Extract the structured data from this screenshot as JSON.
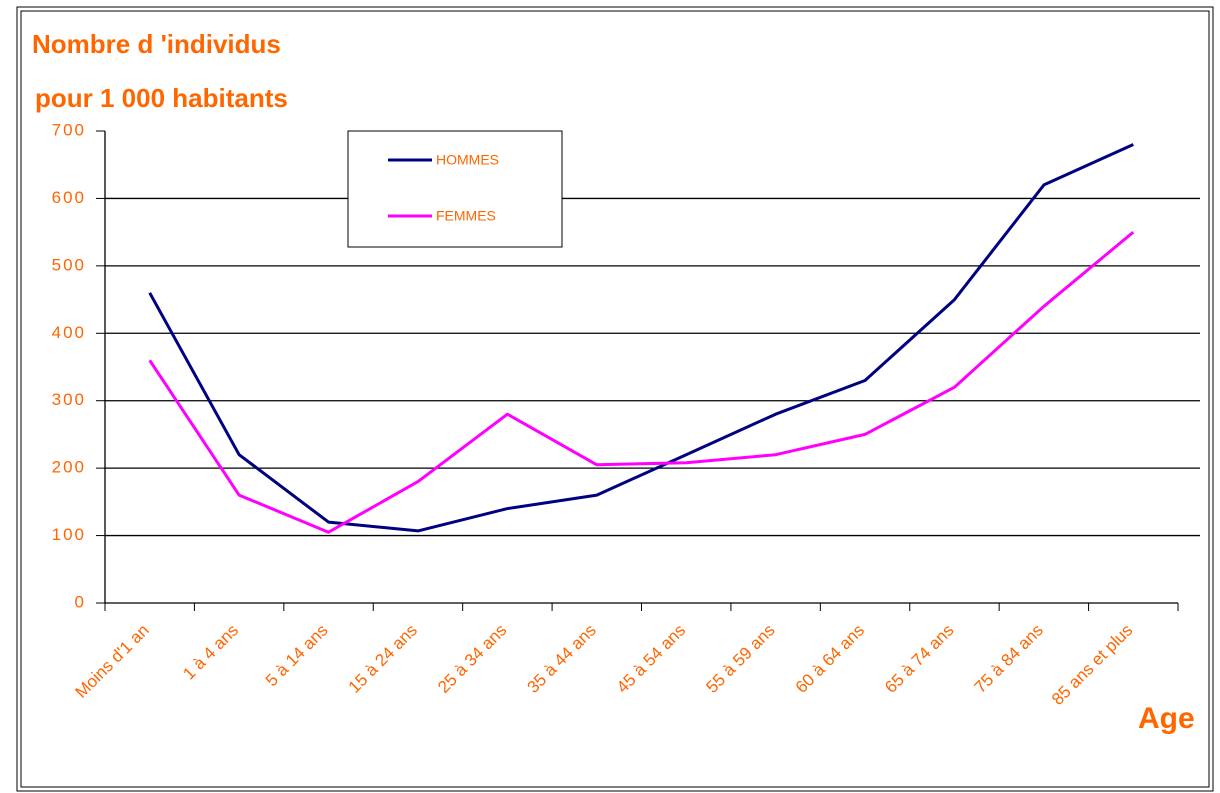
{
  "chart_data": {
    "type": "line",
    "title": "Nombre d 'individus",
    "subtitle": "pour 1 000 habitants",
    "x_label": "Age",
    "categories": [
      "Moins d'1 an",
      "1 à 4 ans",
      "5 à 14 ans",
      "15 à 24 ans",
      "25 à 34 ans",
      "35 à 44 ans",
      "45 à 54 ans",
      "55 à 59 ans",
      "60 à 64 ans",
      "65 à 74 ans",
      "75 à 84 ans",
      "85 ans et plus"
    ],
    "series": [
      {
        "name": "HOMMES",
        "color": "#000080",
        "values": [
          460,
          220,
          120,
          107,
          140,
          160,
          220,
          280,
          330,
          450,
          620,
          680
        ]
      },
      {
        "name": "FEMMES",
        "color": "#ff00ff",
        "values": [
          360,
          160,
          105,
          180,
          280,
          205,
          208,
          220,
          250,
          320,
          440,
          550
        ]
      }
    ],
    "ylim": [
      0,
      700
    ],
    "yticks": [
      0,
      100,
      200,
      300,
      400,
      500,
      600,
      700
    ],
    "grid": true
  }
}
